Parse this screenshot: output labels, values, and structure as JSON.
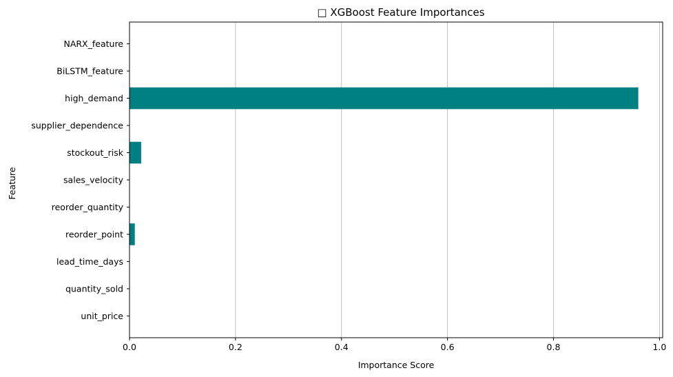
{
  "chart_data": {
    "type": "bar",
    "orientation": "horizontal",
    "title": "□ XGBoost Feature Importances",
    "xlabel": "Importance Score",
    "ylabel": "Feature",
    "categories": [
      "unit_price",
      "quantity_sold",
      "lead_time_days",
      "reorder_point",
      "reorder_quantity",
      "sales_velocity",
      "stockout_risk",
      "supplier_dependence",
      "high_demand",
      "BiLSTM_feature",
      "NARX_feature"
    ],
    "values": [
      0,
      0,
      0,
      0.01,
      0,
      0,
      0.022,
      0,
      0.96,
      0,
      0
    ],
    "xlim": [
      0,
      1.0
    ],
    "xticks": [
      "0.0",
      "0.2",
      "0.4",
      "0.6",
      "0.8",
      "1.0"
    ],
    "xtick_values": [
      0,
      0.2,
      0.4,
      0.6,
      0.8,
      1.0
    ],
    "grid": "x-axis vertical lines",
    "bar_color": "#008080",
    "grid_color": "#b0b0b0"
  }
}
